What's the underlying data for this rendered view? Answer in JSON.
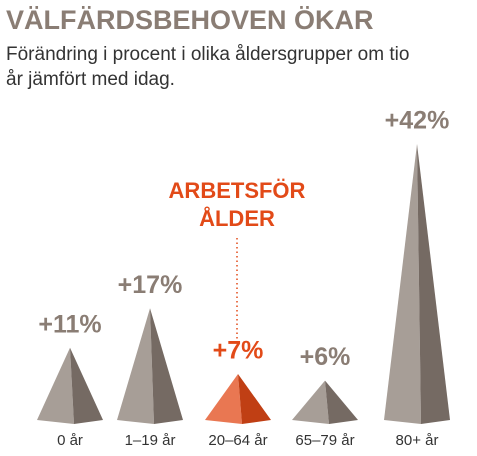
{
  "chart_data": {
    "type": "pyramid",
    "title": "VÄLFÄRDSBEHOVEN ÖKAR",
    "subtitle": [
      "Förändring i procent i olika åldersgrupper om tio",
      "år jämfört med idag."
    ],
    "categories": [
      "0 år",
      "1–19 år",
      "20–64 år",
      "65–79 år",
      "80+ år"
    ],
    "values": [
      11,
      17,
      7,
      6,
      42
    ],
    "value_labels": [
      "+11%",
      "+17%",
      "+7%",
      "+6%",
      "+42%"
    ],
    "colors": [
      "#8a7d74",
      "#8a7d74",
      "#e24a18",
      "#8a7d74",
      "#8a7d74"
    ],
    "annotation": [
      "ARBETSFÖR",
      "ÅLDER"
    ]
  }
}
